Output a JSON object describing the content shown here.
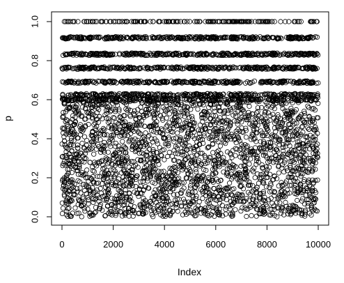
{
  "chart_data": {
    "type": "scatter",
    "title": "",
    "xlabel": "Index",
    "ylabel": "p",
    "xlim": [
      0,
      10000
    ],
    "ylim": [
      0,
      1
    ],
    "x_ticks": [
      0,
      2000,
      4000,
      6000,
      8000,
      10000
    ],
    "y_ticks": [
      0.0,
      0.2,
      0.4,
      0.6,
      0.8,
      1.0
    ],
    "x_tick_labels": [
      "0",
      "2000",
      "4000",
      "6000",
      "8000",
      "10000"
    ],
    "y_tick_labels": [
      "0.0",
      "0.2",
      "0.4",
      "0.6",
      "0.8",
      "1.0"
    ],
    "marker": "open-circle",
    "grid": false,
    "series": [
      {
        "description": "Dense horizontal bands of points at near-discrete p values",
        "bands": [
          1.0,
          0.917,
          0.833,
          0.762,
          0.69,
          0.625,
          0.6
        ]
      },
      {
        "description": "Points spread approximately uniformly over 0 to 0.62",
        "y_range": [
          0.0,
          0.62
        ]
      }
    ]
  }
}
